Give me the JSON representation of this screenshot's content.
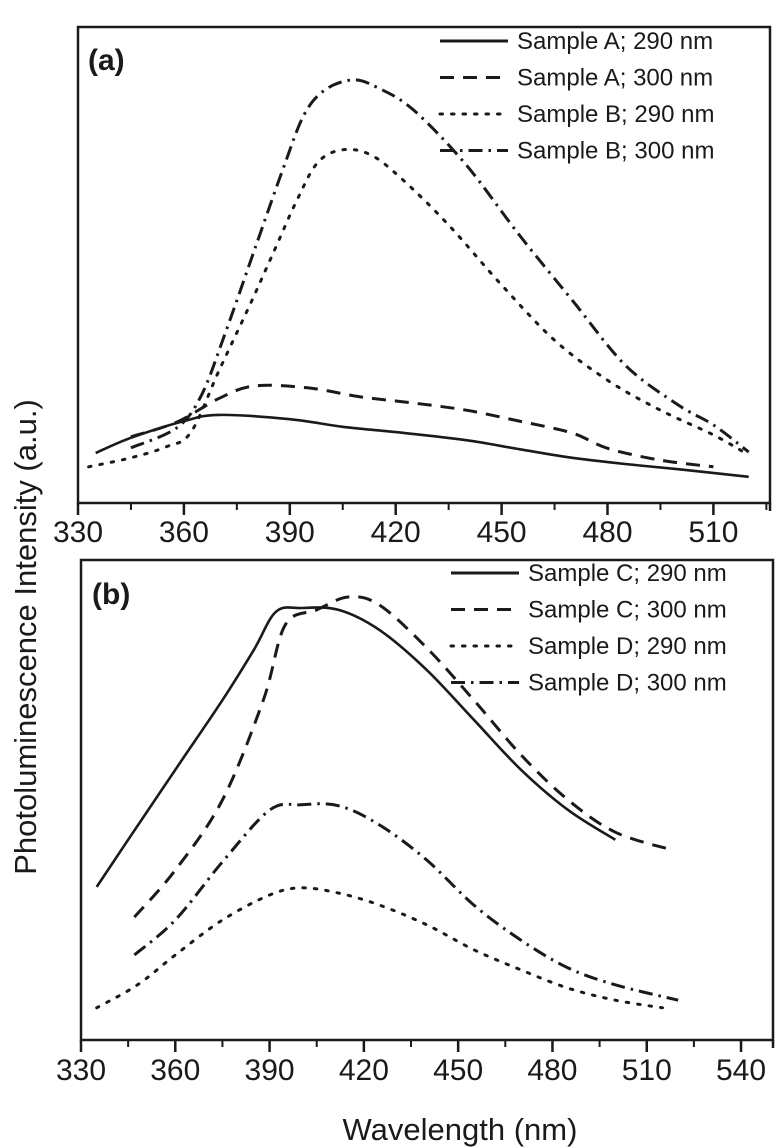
{
  "chart_data": [
    {
      "type": "line",
      "panel_label": "(a)",
      "xlabel": "Wavelength (nm)",
      "ylabel": "Photoluminescence Intensity (a.u.)",
      "xlim": [
        330,
        525
      ],
      "ylim": [
        0,
        100
      ],
      "x_ticks": [
        330,
        360,
        390,
        420,
        450,
        480,
        510
      ],
      "y_ticks_shown": false,
      "grid": false,
      "legend_position": "top-right",
      "series": [
        {
          "name": "Sample A; 290 nm",
          "style": "solid",
          "x": [
            335,
            345,
            360,
            370,
            390,
            405,
            420,
            440,
            455,
            470,
            485,
            500,
            520
          ],
          "y": [
            10.5,
            13.7,
            17.2,
            18.5,
            17.6,
            16.0,
            14.9,
            13.2,
            11.3,
            9.5,
            8.2,
            7.1,
            5.5
          ]
        },
        {
          "name": "Sample A; 300 nm",
          "style": "dash",
          "x": [
            345,
            358,
            370,
            380,
            395,
            410,
            425,
            440,
            455,
            470,
            480,
            495,
            510
          ],
          "y": [
            13.9,
            17.0,
            22.0,
            24.6,
            24.2,
            22.3,
            21.0,
            19.5,
            17.2,
            14.7,
            11.5,
            9.0,
            7.6
          ]
        },
        {
          "name": "Sample B; 290 nm",
          "style": "dot",
          "x": [
            333,
            345,
            355,
            362,
            370,
            378,
            385,
            392,
            398,
            405,
            413,
            422,
            435,
            450,
            465,
            480,
            495,
            510,
            520
          ],
          "y": [
            7.6,
            9.5,
            11.8,
            14.9,
            27.9,
            40.5,
            52.0,
            63.6,
            71.6,
            74.2,
            73.1,
            67.9,
            58.4,
            45.8,
            34.2,
            25.8,
            19.5,
            14.3,
            10.1
          ]
        },
        {
          "name": "Sample B; 300 nm",
          "style": "dashdot",
          "x": [
            345,
            358,
            365,
            372,
            380,
            388,
            394,
            400,
            408,
            415,
            425,
            440,
            455,
            470,
            485,
            500,
            510,
            520
          ],
          "y": [
            11.6,
            15.8,
            22.7,
            36.3,
            53.2,
            70.0,
            81.5,
            86.8,
            88.9,
            87.2,
            82.6,
            71.0,
            56.3,
            42.6,
            29.0,
            20.6,
            16.4,
            10.7
          ]
        }
      ]
    },
    {
      "type": "line",
      "panel_label": "(b)",
      "xlabel": "Wavelength (nm)",
      "ylabel": "Photoluminescence Intensity (a.u.)",
      "xlim": [
        330,
        550
      ],
      "ylim": [
        0,
        100
      ],
      "x_ticks": [
        330,
        360,
        390,
        420,
        450,
        480,
        510,
        540
      ],
      "y_ticks_shown": false,
      "grid": false,
      "legend_position": "top-right",
      "series": [
        {
          "name": "Sample C; 290 nm",
          "style": "solid",
          "x": [
            335,
            345,
            360,
            375,
            385,
            392,
            400,
            412,
            425,
            440,
            455,
            470,
            485,
            500
          ],
          "y": [
            31.9,
            41.7,
            56.3,
            70.8,
            81.3,
            89.2,
            90.0,
            89.6,
            85.4,
            77.1,
            66.7,
            56.3,
            47.9,
            41.7
          ]
        },
        {
          "name": "Sample C; 300 nm",
          "style": "dash",
          "x": [
            347,
            360,
            375,
            388,
            395,
            405,
            415,
            425,
            440,
            455,
            470,
            485,
            500,
            518
          ],
          "y": [
            25.6,
            35.4,
            50.0,
            70.8,
            86.5,
            89.6,
            92.3,
            90.6,
            81.7,
            70.8,
            59.4,
            50.0,
            43.3,
            39.6
          ]
        },
        {
          "name": "Sample D; 290 nm",
          "style": "dot",
          "x": [
            335,
            348,
            360,
            375,
            390,
            400,
            412,
            425,
            440,
            455,
            470,
            485,
            500,
            515
          ],
          "y": [
            6.7,
            11.5,
            17.7,
            25.0,
            30.2,
            31.7,
            30.6,
            28.1,
            24.0,
            18.8,
            14.6,
            10.8,
            8.3,
            6.7
          ]
        },
        {
          "name": "Sample D; 300 nm",
          "style": "dashdot",
          "x": [
            347,
            360,
            375,
            390,
            400,
            412,
            425,
            440,
            455,
            470,
            485,
            500,
            520
          ],
          "y": [
            17.7,
            25.0,
            37.1,
            47.9,
            49.0,
            48.8,
            44.8,
            37.5,
            28.1,
            20.8,
            15.0,
            11.5,
            8.3
          ]
        }
      ]
    }
  ],
  "colors": {
    "ink": "#1a1a1a",
    "background": "#ffffff"
  }
}
